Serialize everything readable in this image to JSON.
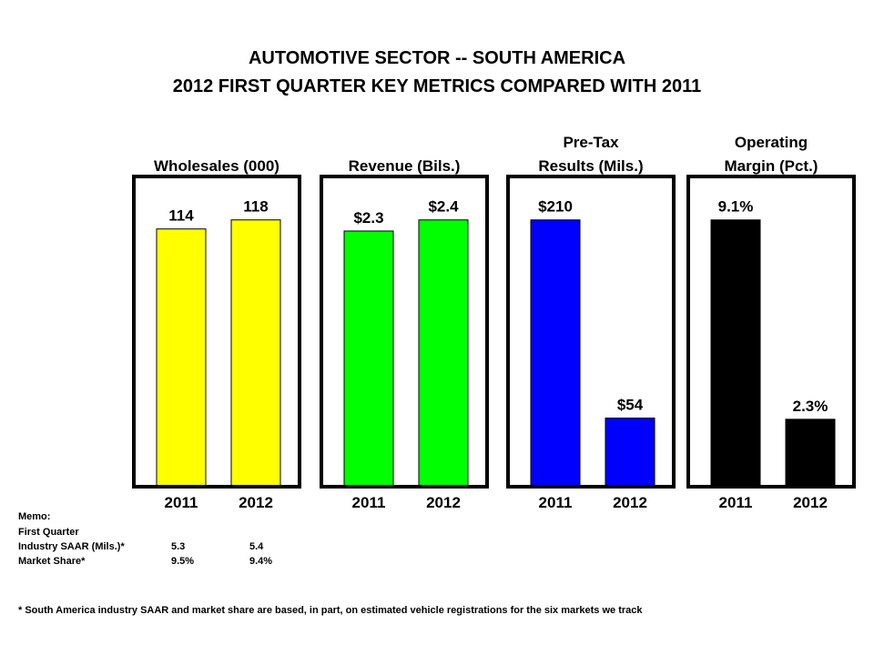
{
  "title": [
    "AUTOMOTIVE SECTOR -- SOUTH AMERICA",
    "2012 FIRST QUARTER KEY METRICS COMPARED WITH 2011"
  ],
  "chart_data": [
    {
      "type": "bar",
      "title": [
        "Wholesales (000)"
      ],
      "categories": [
        "2011",
        "2012"
      ],
      "values": [
        114,
        118
      ],
      "color": "#ffff00"
    },
    {
      "type": "bar",
      "title": [
        "Revenue (Bils.)"
      ],
      "categories": [
        "2011",
        "2012"
      ],
      "values": [
        2.3,
        2.4
      ],
      "value_labels": [
        "$2.3",
        "$2.4"
      ],
      "color": "#00ff00"
    },
    {
      "type": "bar",
      "title": [
        "Pre-Tax",
        "Results (Mils.)"
      ],
      "categories": [
        "2011",
        "2012"
      ],
      "values": [
        210,
        54
      ],
      "value_labels": [
        "$210",
        "$54"
      ],
      "color": "#0000ff"
    },
    {
      "type": "bar",
      "title": [
        "Operating",
        "Margin (Pct.)"
      ],
      "categories": [
        "2011",
        "2012"
      ],
      "values": [
        9.1,
        2.3
      ],
      "value_labels": [
        "9.1%",
        "2.3%"
      ],
      "color": "#000000"
    }
  ],
  "memo": {
    "heading": "Memo:",
    "subheading": "First Quarter",
    "rows": [
      [
        "Industry SAAR (Mils.)*",
        "5.3",
        "5.4"
      ],
      [
        "Market Share*",
        "9.5%",
        "9.4%"
      ]
    ]
  },
  "footnote": "*  South America industry  SAAR and market share are based, in part, on estimated vehicle registrations for the six markets we track"
}
